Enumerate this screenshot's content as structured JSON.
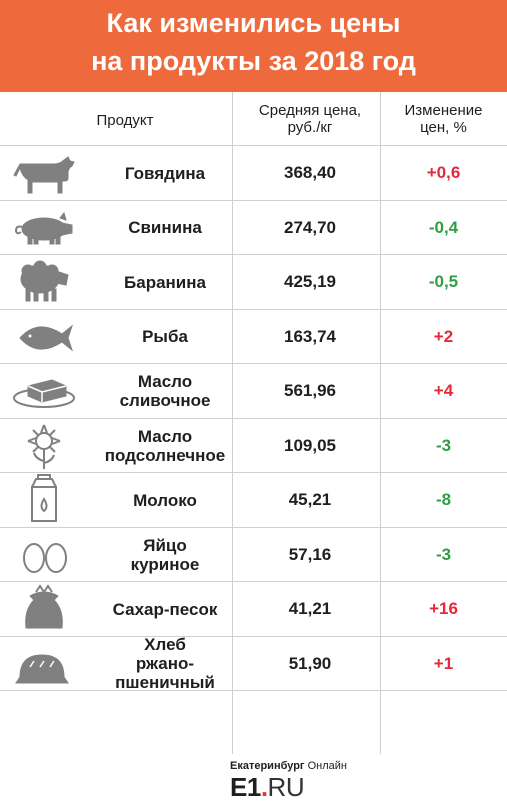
{
  "header": {
    "title_line1": "Как изменились цены",
    "title_line2": "на продукты за 2018 год",
    "background": "#ee6a3c"
  },
  "columns": {
    "product": "Продукт",
    "price": "Средняя цена,\nруб./кг",
    "change": "Изменение\nцен, %"
  },
  "colors": {
    "increase": "#e5283a",
    "decrease": "#2f9e45",
    "icon": "#808080"
  },
  "rows": [
    {
      "icon": "cow-icon",
      "name": "Говядина",
      "price": "368,40",
      "change": "+0,6",
      "dir": "up"
    },
    {
      "icon": "pig-icon",
      "name": "Свинина",
      "price": "274,70",
      "change": "-0,4",
      "dir": "down"
    },
    {
      "icon": "sheep-icon",
      "name": "Баранина",
      "price": "425,19",
      "change": "-0,5",
      "dir": "down"
    },
    {
      "icon": "fish-icon",
      "name": "Рыба",
      "price": "163,74",
      "change": "+2",
      "dir": "up"
    },
    {
      "icon": "butter-icon",
      "name": "Масло\nсливочное",
      "price": "561,96",
      "change": "+4",
      "dir": "up"
    },
    {
      "icon": "sunflower-icon",
      "name": "Масло\nподсолнечное",
      "price": "109,05",
      "change": "-3",
      "dir": "down"
    },
    {
      "icon": "milk-carton-icon",
      "name": "Молоко",
      "price": "45,21",
      "change": "-8",
      "dir": "down"
    },
    {
      "icon": "eggs-icon",
      "name": "Яйцо\nкуриное",
      "price": "57,16",
      "change": "-3",
      "dir": "down"
    },
    {
      "icon": "sugar-sack-icon",
      "name": "Сахар-песок",
      "price": "41,21",
      "change": "+16",
      "dir": "up"
    },
    {
      "icon": "bread-icon",
      "name": "Хлеб\nржано-\nпшеничный",
      "price": "51,90",
      "change": "+1",
      "dir": "up"
    }
  ],
  "footer": {
    "city": "Екатеринбург",
    "online": "Онлайн",
    "logo_e1": "E1",
    "logo_dot": ".",
    "logo_ru": "RU"
  }
}
